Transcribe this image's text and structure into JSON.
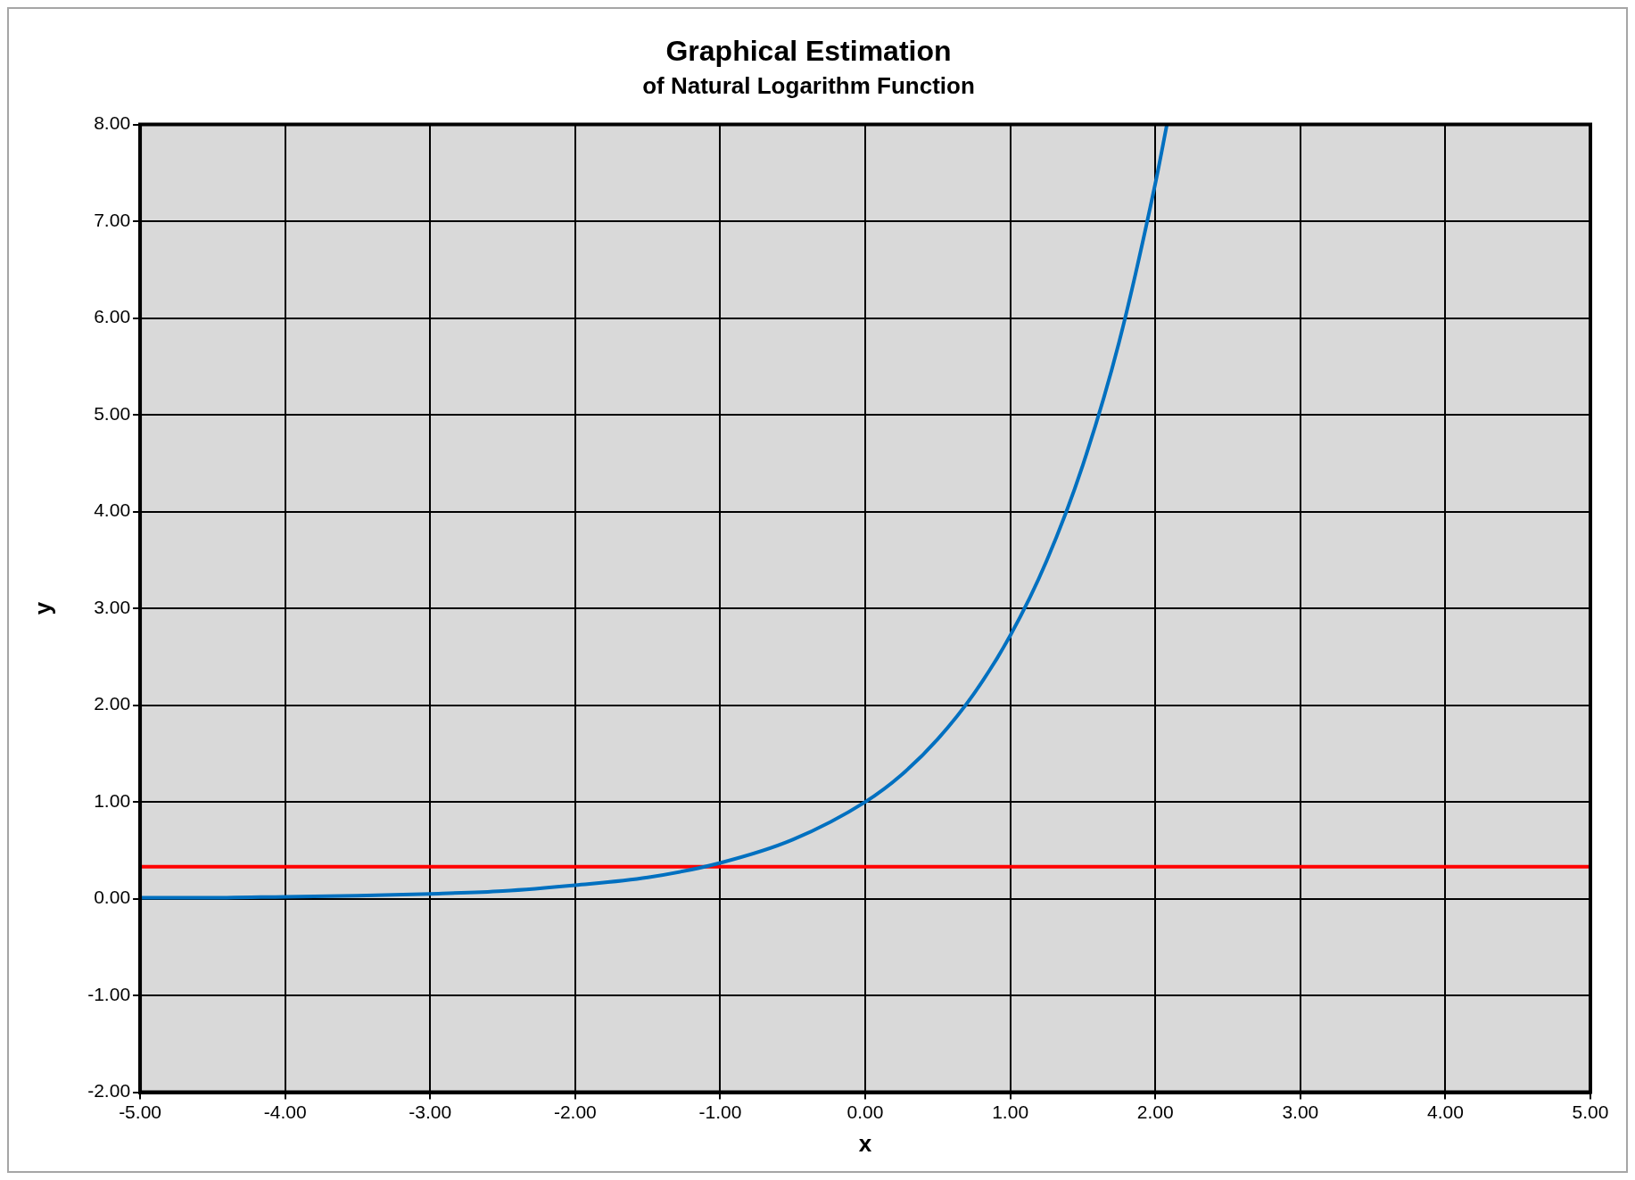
{
  "chart_data": {
    "type": "line",
    "title": "Graphical Estimation",
    "subtitle": "of Natural Logarithm Function",
    "xlabel": "x",
    "ylabel": "y",
    "xlim": [
      -5,
      5
    ],
    "ylim": [
      -2,
      8
    ],
    "xticks": [
      {
        "value": -5,
        "label": "-5.00"
      },
      {
        "value": -4,
        "label": "-4.00"
      },
      {
        "value": -3,
        "label": "-3.00"
      },
      {
        "value": -2,
        "label": "-2.00"
      },
      {
        "value": -1,
        "label": "-1.00"
      },
      {
        "value": 0,
        "label": "0.00"
      },
      {
        "value": 1,
        "label": "1.00"
      },
      {
        "value": 2,
        "label": "2.00"
      },
      {
        "value": 3,
        "label": "3.00"
      },
      {
        "value": 4,
        "label": "4.00"
      },
      {
        "value": 5,
        "label": "5.00"
      }
    ],
    "yticks": [
      {
        "value": -2,
        "label": "-2.00"
      },
      {
        "value": -1,
        "label": "-1.00"
      },
      {
        "value": 0,
        "label": "0.00"
      },
      {
        "value": 1,
        "label": "1.00"
      },
      {
        "value": 2,
        "label": "2.00"
      },
      {
        "value": 3,
        "label": "3.00"
      },
      {
        "value": 4,
        "label": "4.00"
      },
      {
        "value": 5,
        "label": "5.00"
      },
      {
        "value": 6,
        "label": "6.00"
      },
      {
        "value": 7,
        "label": "7.00"
      },
      {
        "value": 8,
        "label": "8.00"
      }
    ],
    "grid": true,
    "legend": false,
    "marker": "none",
    "line_style": "solid",
    "series": [
      {
        "type": "line",
        "color": "#0070c0",
        "x": [
          -5,
          -4.5,
          -4,
          -3.5,
          -3,
          -2.5,
          -2,
          -1.5,
          -1,
          -0.5,
          0,
          0.25,
          0.5,
          0.75,
          1,
          1.25,
          1.5,
          1.75,
          2,
          2.08
        ],
        "values": [
          0.01,
          0.01,
          0.02,
          0.03,
          0.05,
          0.08,
          0.14,
          0.22,
          0.37,
          0.61,
          1.0,
          1.28,
          1.65,
          2.12,
          2.72,
          3.49,
          4.48,
          5.75,
          7.39,
          8.0
        ]
      },
      {
        "type": "line",
        "color": "#ff0000",
        "x": [
          -5,
          5
        ],
        "values": [
          0.33,
          0.33
        ]
      }
    ]
  }
}
